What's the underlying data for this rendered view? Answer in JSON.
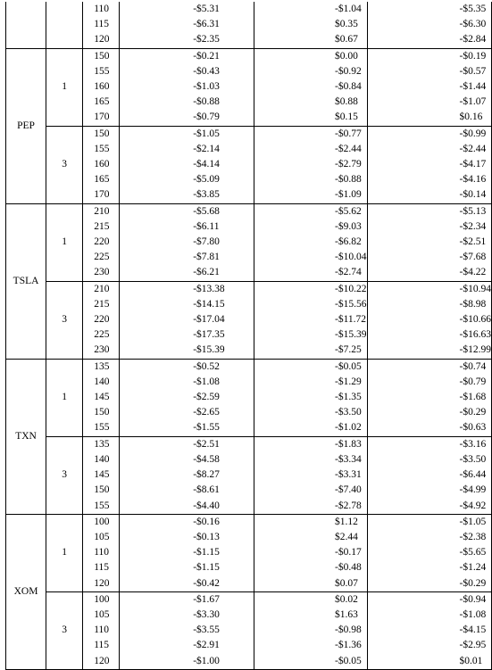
{
  "sections": [
    {
      "ticker": "",
      "groups": [
        {
          "maturity": "",
          "rows": [
            {
              "strike": "110",
              "c1": "-$5.31",
              "c2": "-$1.04",
              "c3": "-$5.35"
            },
            {
              "strike": "115",
              "c1": "-$6.31",
              "c2": "$0.35",
              "c3": "-$6.30"
            },
            {
              "strike": "120",
              "c1": "-$2.35",
              "c2": "$0.67",
              "c3": "-$2.84"
            }
          ]
        }
      ]
    },
    {
      "ticker": "PEP",
      "groups": [
        {
          "maturity": "1",
          "rows": [
            {
              "strike": "150",
              "c1": "-$0.21",
              "c2": "$0.00",
              "c3": "-$0.19"
            },
            {
              "strike": "155",
              "c1": "-$0.43",
              "c2": "-$0.92",
              "c3": "-$0.57"
            },
            {
              "strike": "160",
              "c1": "-$1.03",
              "c2": "-$0.84",
              "c3": "-$1.44"
            },
            {
              "strike": "165",
              "c1": "-$0.88",
              "c2": "$0.88",
              "c3": "-$1.07"
            },
            {
              "strike": "170",
              "c1": "-$0.79",
              "c2": "$0.15",
              "c3": "$0.16"
            }
          ]
        },
        {
          "maturity": "3",
          "rows": [
            {
              "strike": "150",
              "c1": "-$1.05",
              "c2": "-$0.77",
              "c3": "-$0.99"
            },
            {
              "strike": "155",
              "c1": "-$2.14",
              "c2": "-$2.44",
              "c3": "-$2.44"
            },
            {
              "strike": "160",
              "c1": "-$4.14",
              "c2": "-$2.79",
              "c3": "-$4.17"
            },
            {
              "strike": "165",
              "c1": "-$5.09",
              "c2": "-$0.88",
              "c3": "-$4.16"
            },
            {
              "strike": "170",
              "c1": "-$3.85",
              "c2": "-$1.09",
              "c3": "-$0.14"
            }
          ]
        }
      ]
    },
    {
      "ticker": "TSLA",
      "groups": [
        {
          "maturity": "1",
          "rows": [
            {
              "strike": "210",
              "c1": "-$5.68",
              "c2": "-$5.62",
              "c3": "-$5.13"
            },
            {
              "strike": "215",
              "c1": "-$6.11",
              "c2": "-$9.03",
              "c3": "-$2.34"
            },
            {
              "strike": "220",
              "c1": "-$7.80",
              "c2": "-$6.82",
              "c3": "-$2.51"
            },
            {
              "strike": "225",
              "c1": "-$7.81",
              "c2": "-$10.04",
              "c3": "-$7.68"
            },
            {
              "strike": "230",
              "c1": "-$6.21",
              "c2": "-$2.74",
              "c3": "-$4.22"
            }
          ]
        },
        {
          "maturity": "3",
          "rows": [
            {
              "strike": "210",
              "c1": "-$13.38",
              "c2": "-$10.22",
              "c3": "-$10.94"
            },
            {
              "strike": "215",
              "c1": "-$14.15",
              "c2": "-$15.56",
              "c3": "-$8.98"
            },
            {
              "strike": "220",
              "c1": "-$17.04",
              "c2": "-$11.72",
              "c3": "-$10.66"
            },
            {
              "strike": "225",
              "c1": "-$17.35",
              "c2": "-$15.39",
              "c3": "-$16.63"
            },
            {
              "strike": "230",
              "c1": "-$15.39",
              "c2": "-$7.25",
              "c3": "-$12.99"
            }
          ]
        }
      ]
    },
    {
      "ticker": "TXN",
      "groups": [
        {
          "maturity": "1",
          "rows": [
            {
              "strike": "135",
              "c1": "-$0.52",
              "c2": "-$0.05",
              "c3": "-$0.74"
            },
            {
              "strike": "140",
              "c1": "-$1.08",
              "c2": "-$1.29",
              "c3": "-$0.79"
            },
            {
              "strike": "145",
              "c1": "-$2.59",
              "c2": "-$1.35",
              "c3": "-$1.68"
            },
            {
              "strike": "150",
              "c1": "-$2.65",
              "c2": "-$3.50",
              "c3": "-$0.29"
            },
            {
              "strike": "155",
              "c1": "-$1.55",
              "c2": "-$1.02",
              "c3": "-$0.63"
            }
          ]
        },
        {
          "maturity": "3",
          "rows": [
            {
              "strike": "135",
              "c1": "-$2.51",
              "c2": "-$1.83",
              "c3": "-$3.16"
            },
            {
              "strike": "140",
              "c1": "-$4.58",
              "c2": "-$3.34",
              "c3": "-$3.50"
            },
            {
              "strike": "145",
              "c1": "-$8.27",
              "c2": "-$3.31",
              "c3": "-$6.44"
            },
            {
              "strike": "150",
              "c1": "-$8.61",
              "c2": "-$7.40",
              "c3": "-$4.99"
            },
            {
              "strike": "155",
              "c1": "-$4.40",
              "c2": "-$2.78",
              "c3": "-$4.92"
            }
          ]
        }
      ]
    },
    {
      "ticker": "XOM",
      "groups": [
        {
          "maturity": "1",
          "rows": [
            {
              "strike": "100",
              "c1": "-$0.16",
              "c2": "$1.12",
              "c3": "-$1.05"
            },
            {
              "strike": "105",
              "c1": "-$0.13",
              "c2": "$2.44",
              "c3": "-$2.38"
            },
            {
              "strike": "110",
              "c1": "-$1.15",
              "c2": "-$0.17",
              "c3": "-$5.65"
            },
            {
              "strike": "115",
              "c1": "-$1.15",
              "c2": "-$0.48",
              "c3": "-$1.24"
            },
            {
              "strike": "120",
              "c1": "-$0.42",
              "c2": "$0.07",
              "c3": "-$0.29"
            }
          ]
        },
        {
          "maturity": "3",
          "rows": [
            {
              "strike": "100",
              "c1": "-$1.67",
              "c2": "$0.02",
              "c3": "-$0.94"
            },
            {
              "strike": "105",
              "c1": "-$3.30",
              "c2": "$1.63",
              "c3": "-$1.08"
            },
            {
              "strike": "110",
              "c1": "-$3.55",
              "c2": "-$0.98",
              "c3": "-$4.15"
            },
            {
              "strike": "115",
              "c1": "-$2.91",
              "c2": "-$1.36",
              "c3": "-$2.95"
            },
            {
              "strike": "120",
              "c1": "-$1.00",
              "c2": "-$0.05",
              "c3": "$0.01"
            }
          ]
        }
      ]
    }
  ]
}
